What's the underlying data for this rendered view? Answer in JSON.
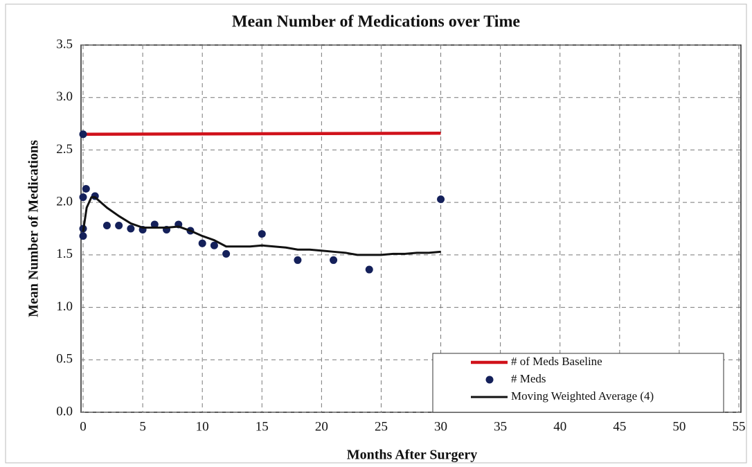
{
  "chart_data": {
    "type": "line",
    "title": "Mean Number of Medications over Time",
    "x_label": "Months After Surgery",
    "y_label": "Mean Number of Medications",
    "xlim": [
      0,
      55
    ],
    "xticks": [
      0,
      5,
      10,
      15,
      20,
      25,
      30,
      35,
      40,
      45,
      50,
      55
    ],
    "ylim": [
      0,
      3.5
    ],
    "yticks": [
      {
        "value": 0,
        "label": "0.0"
      },
      0.5,
      {
        "value": 1,
        "label": "1.0"
      },
      1.5,
      {
        "value": 2,
        "label": "2.0"
      },
      2.5,
      {
        "value": 3,
        "label": "3.0"
      },
      3.5
    ],
    "grid": true,
    "legend": "lower right",
    "series": [
      {
        "name": "# of Meds Baseline",
        "type": "line",
        "color": "#d0121b",
        "x": [
          0,
          30
        ],
        "values": [
          2.65,
          2.66
        ]
      },
      {
        "name": "# Meds",
        "type": "scatter",
        "color": "#14205a",
        "x": [
          0,
          0,
          0,
          0,
          0.25,
          1,
          2,
          3,
          4,
          5,
          6,
          7,
          8,
          9,
          10,
          11,
          12,
          15,
          18,
          21,
          24,
          30
        ],
        "values": [
          2.65,
          1.68,
          1.75,
          2.05,
          2.13,
          2.06,
          1.78,
          1.78,
          1.75,
          1.74,
          1.79,
          1.74,
          1.79,
          1.73,
          1.61,
          1.59,
          1.51,
          1.7,
          1.45,
          1.45,
          1.36,
          2.03
        ]
      },
      {
        "name": "Moving Weighted Average (4)",
        "type": "line",
        "color": "#111111",
        "x": [
          0,
          0.3,
          0.7,
          1,
          2,
          3,
          4,
          5,
          6,
          7,
          8,
          9,
          10,
          11,
          12,
          13,
          14,
          15,
          16,
          17,
          18,
          19,
          20,
          21,
          22,
          23,
          24,
          25,
          26,
          27,
          28,
          29,
          30
        ],
        "values": [
          1.72,
          1.95,
          2.05,
          2.05,
          1.95,
          1.87,
          1.8,
          1.76,
          1.76,
          1.76,
          1.77,
          1.73,
          1.68,
          1.64,
          1.58,
          1.58,
          1.58,
          1.59,
          1.58,
          1.57,
          1.55,
          1.55,
          1.54,
          1.53,
          1.52,
          1.5,
          1.5,
          1.5,
          1.51,
          1.51,
          1.52,
          1.52,
          1.53
        ]
      }
    ]
  }
}
